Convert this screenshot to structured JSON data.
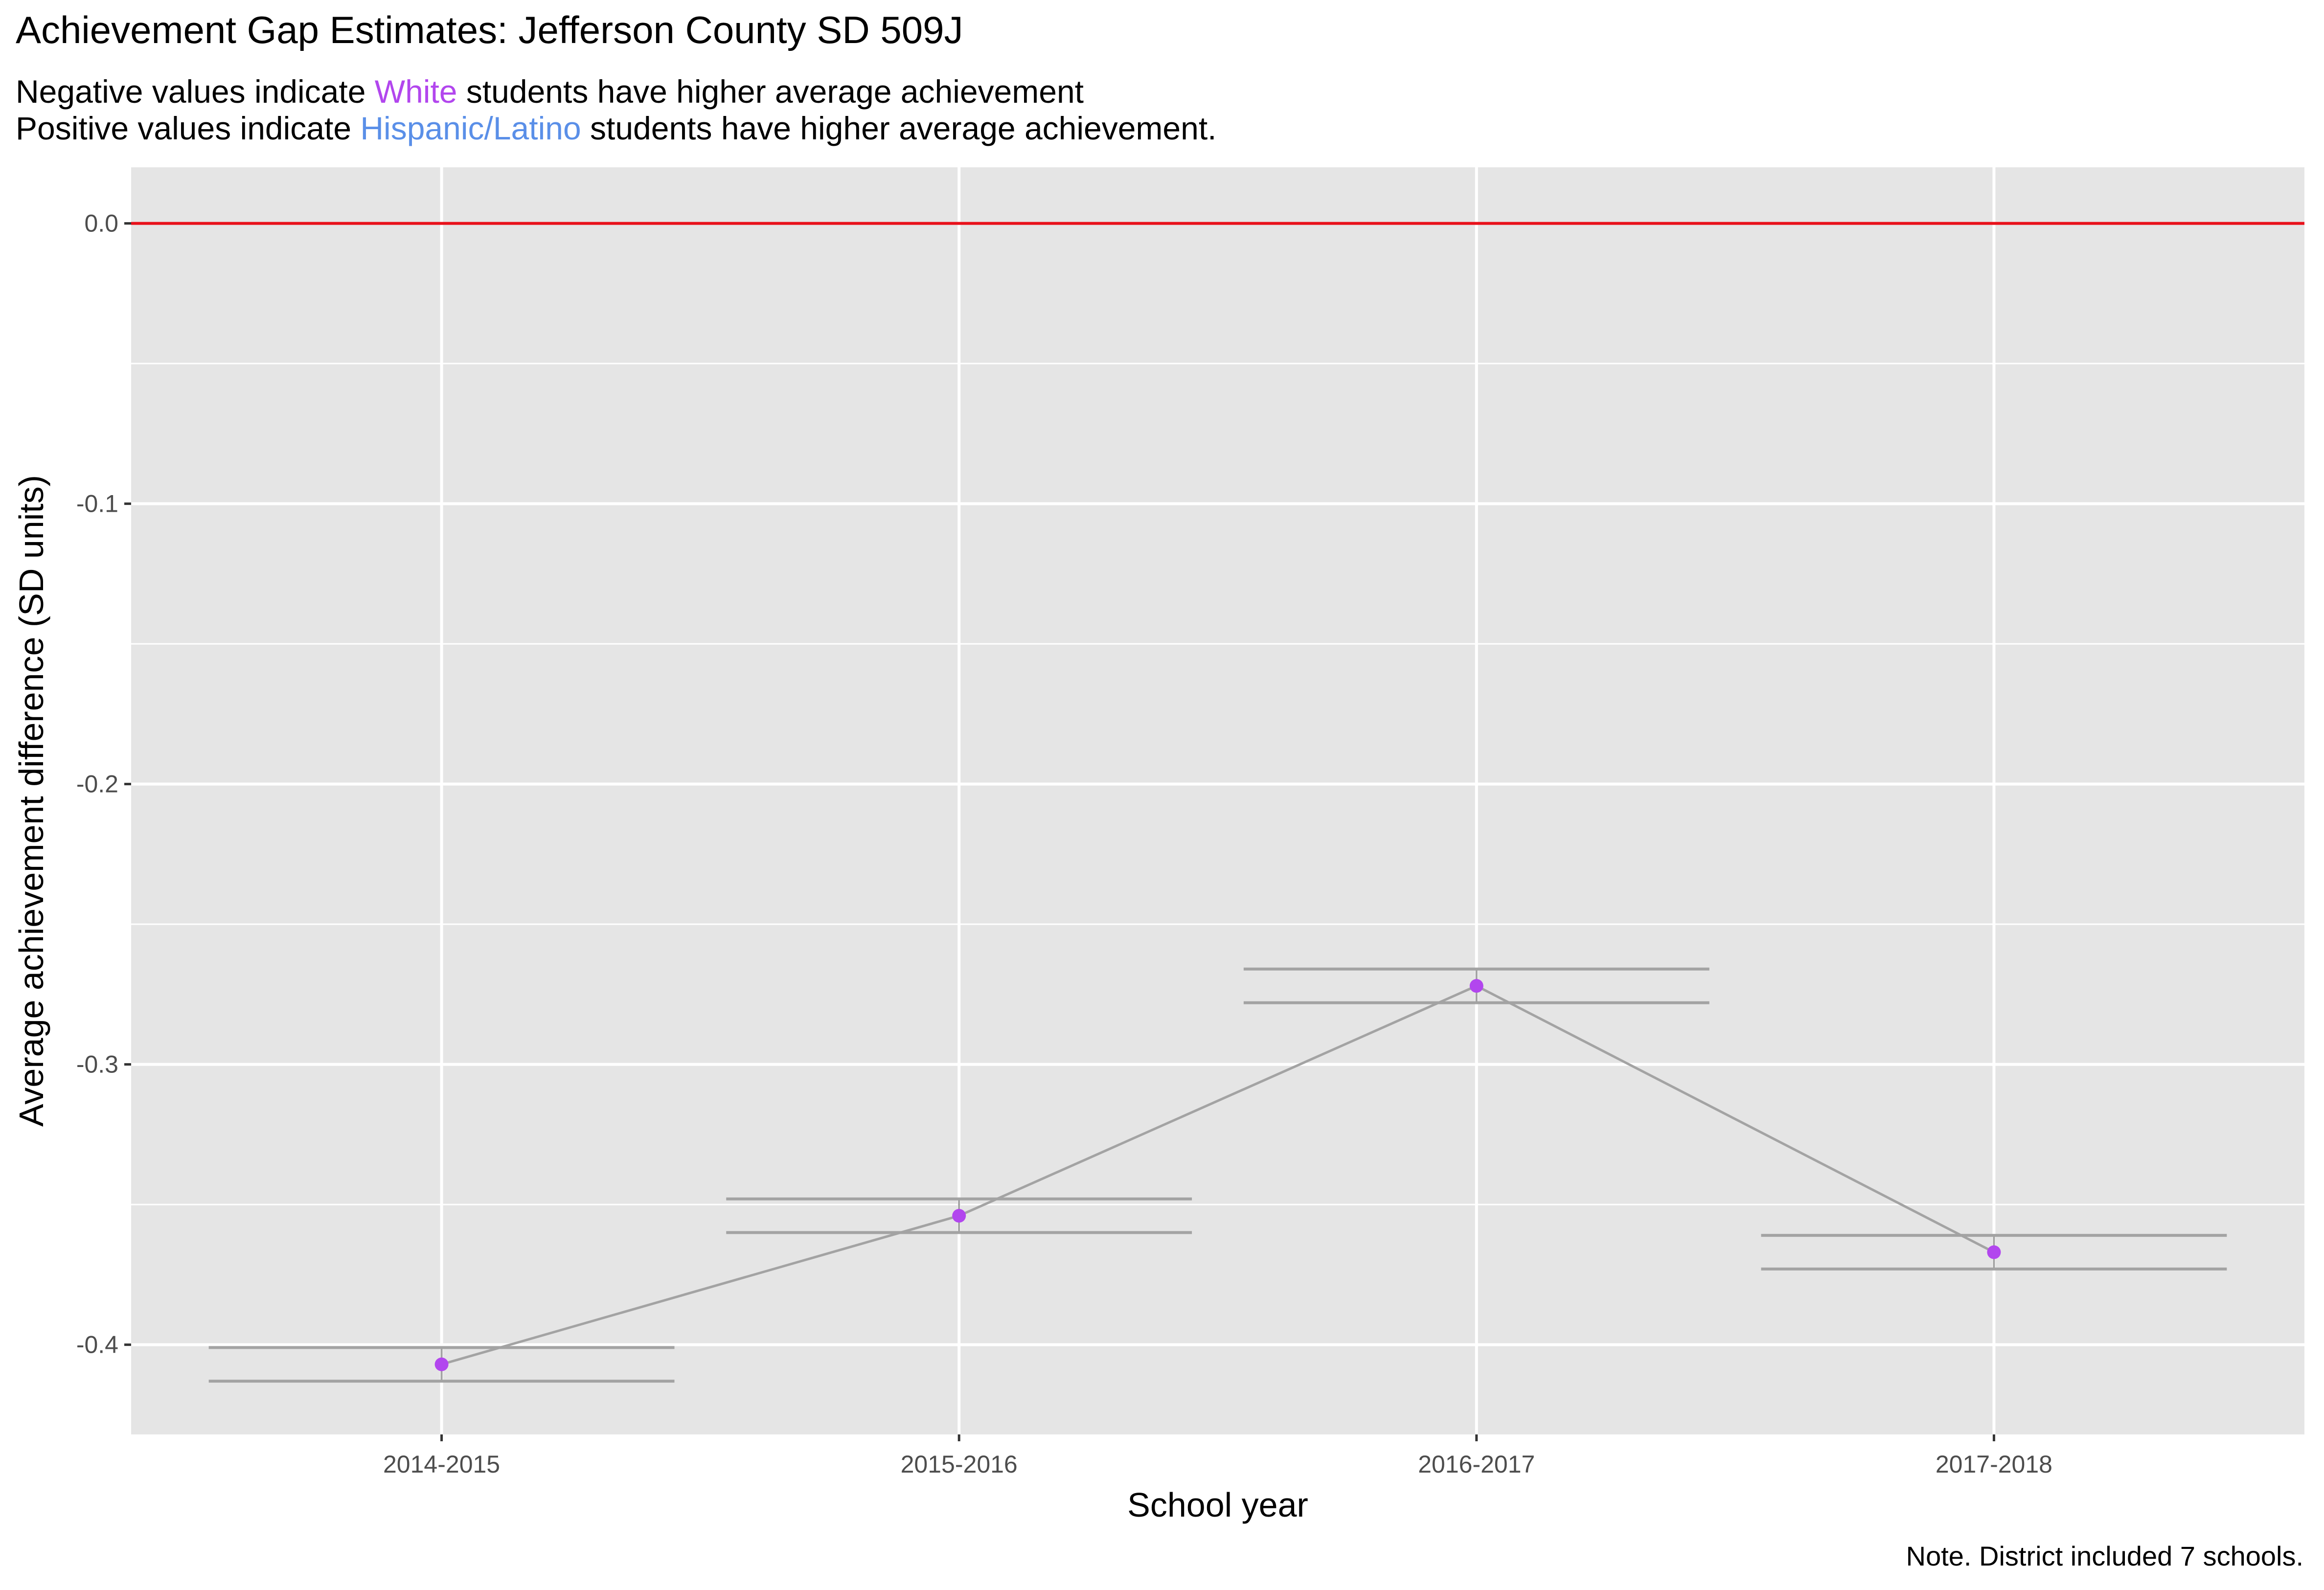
{
  "colors": {
    "panel_bg": "#E5E5E5",
    "grid": "#FFFFFF",
    "reference_line": "#E8111A",
    "trend_line": "#A3A3A3",
    "interval_line": "#A3A3A3",
    "point": "#B246EE",
    "white_label": "#B246EE",
    "hispanic_label": "#5A8FE8",
    "text": "#000000",
    "tick_text": "#4D4D4D"
  },
  "chart_data": {
    "type": "scatter",
    "title": "Achievement Gap Estimates: Jefferson County SD 509J",
    "subtitle": {
      "line1": {
        "before": "Negative values indicate ",
        "highlight": "White",
        "after": " students have higher average achievement"
      },
      "line2": {
        "before": "Positive values indicate ",
        "highlight": "Hispanic/Latino",
        "after": " students have higher average achievement."
      }
    },
    "xlabel": "School year",
    "ylabel": "Average achievement difference (SD units)",
    "caption": "Note. District included 7 schools.",
    "categories": [
      "2014-2015",
      "2015-2016",
      "2016-2017",
      "2017-2018"
    ],
    "series": [
      {
        "values": [
          -0.407,
          -0.354,
          -0.272,
          -0.367
        ],
        "upper": [
          -0.401,
          -0.348,
          -0.266,
          -0.361
        ],
        "lower": [
          -0.413,
          -0.36,
          -0.278,
          -0.373
        ]
      }
    ],
    "reference_line": 0,
    "ylim": [
      -0.432,
      0.02
    ],
    "yticks": [
      0.0,
      -0.1,
      -0.2,
      -0.3,
      -0.4
    ],
    "ytick_labels": [
      "0.0",
      "-0.1",
      "-0.2",
      "-0.3",
      "-0.4"
    ],
    "grid": true,
    "legend": "none"
  }
}
